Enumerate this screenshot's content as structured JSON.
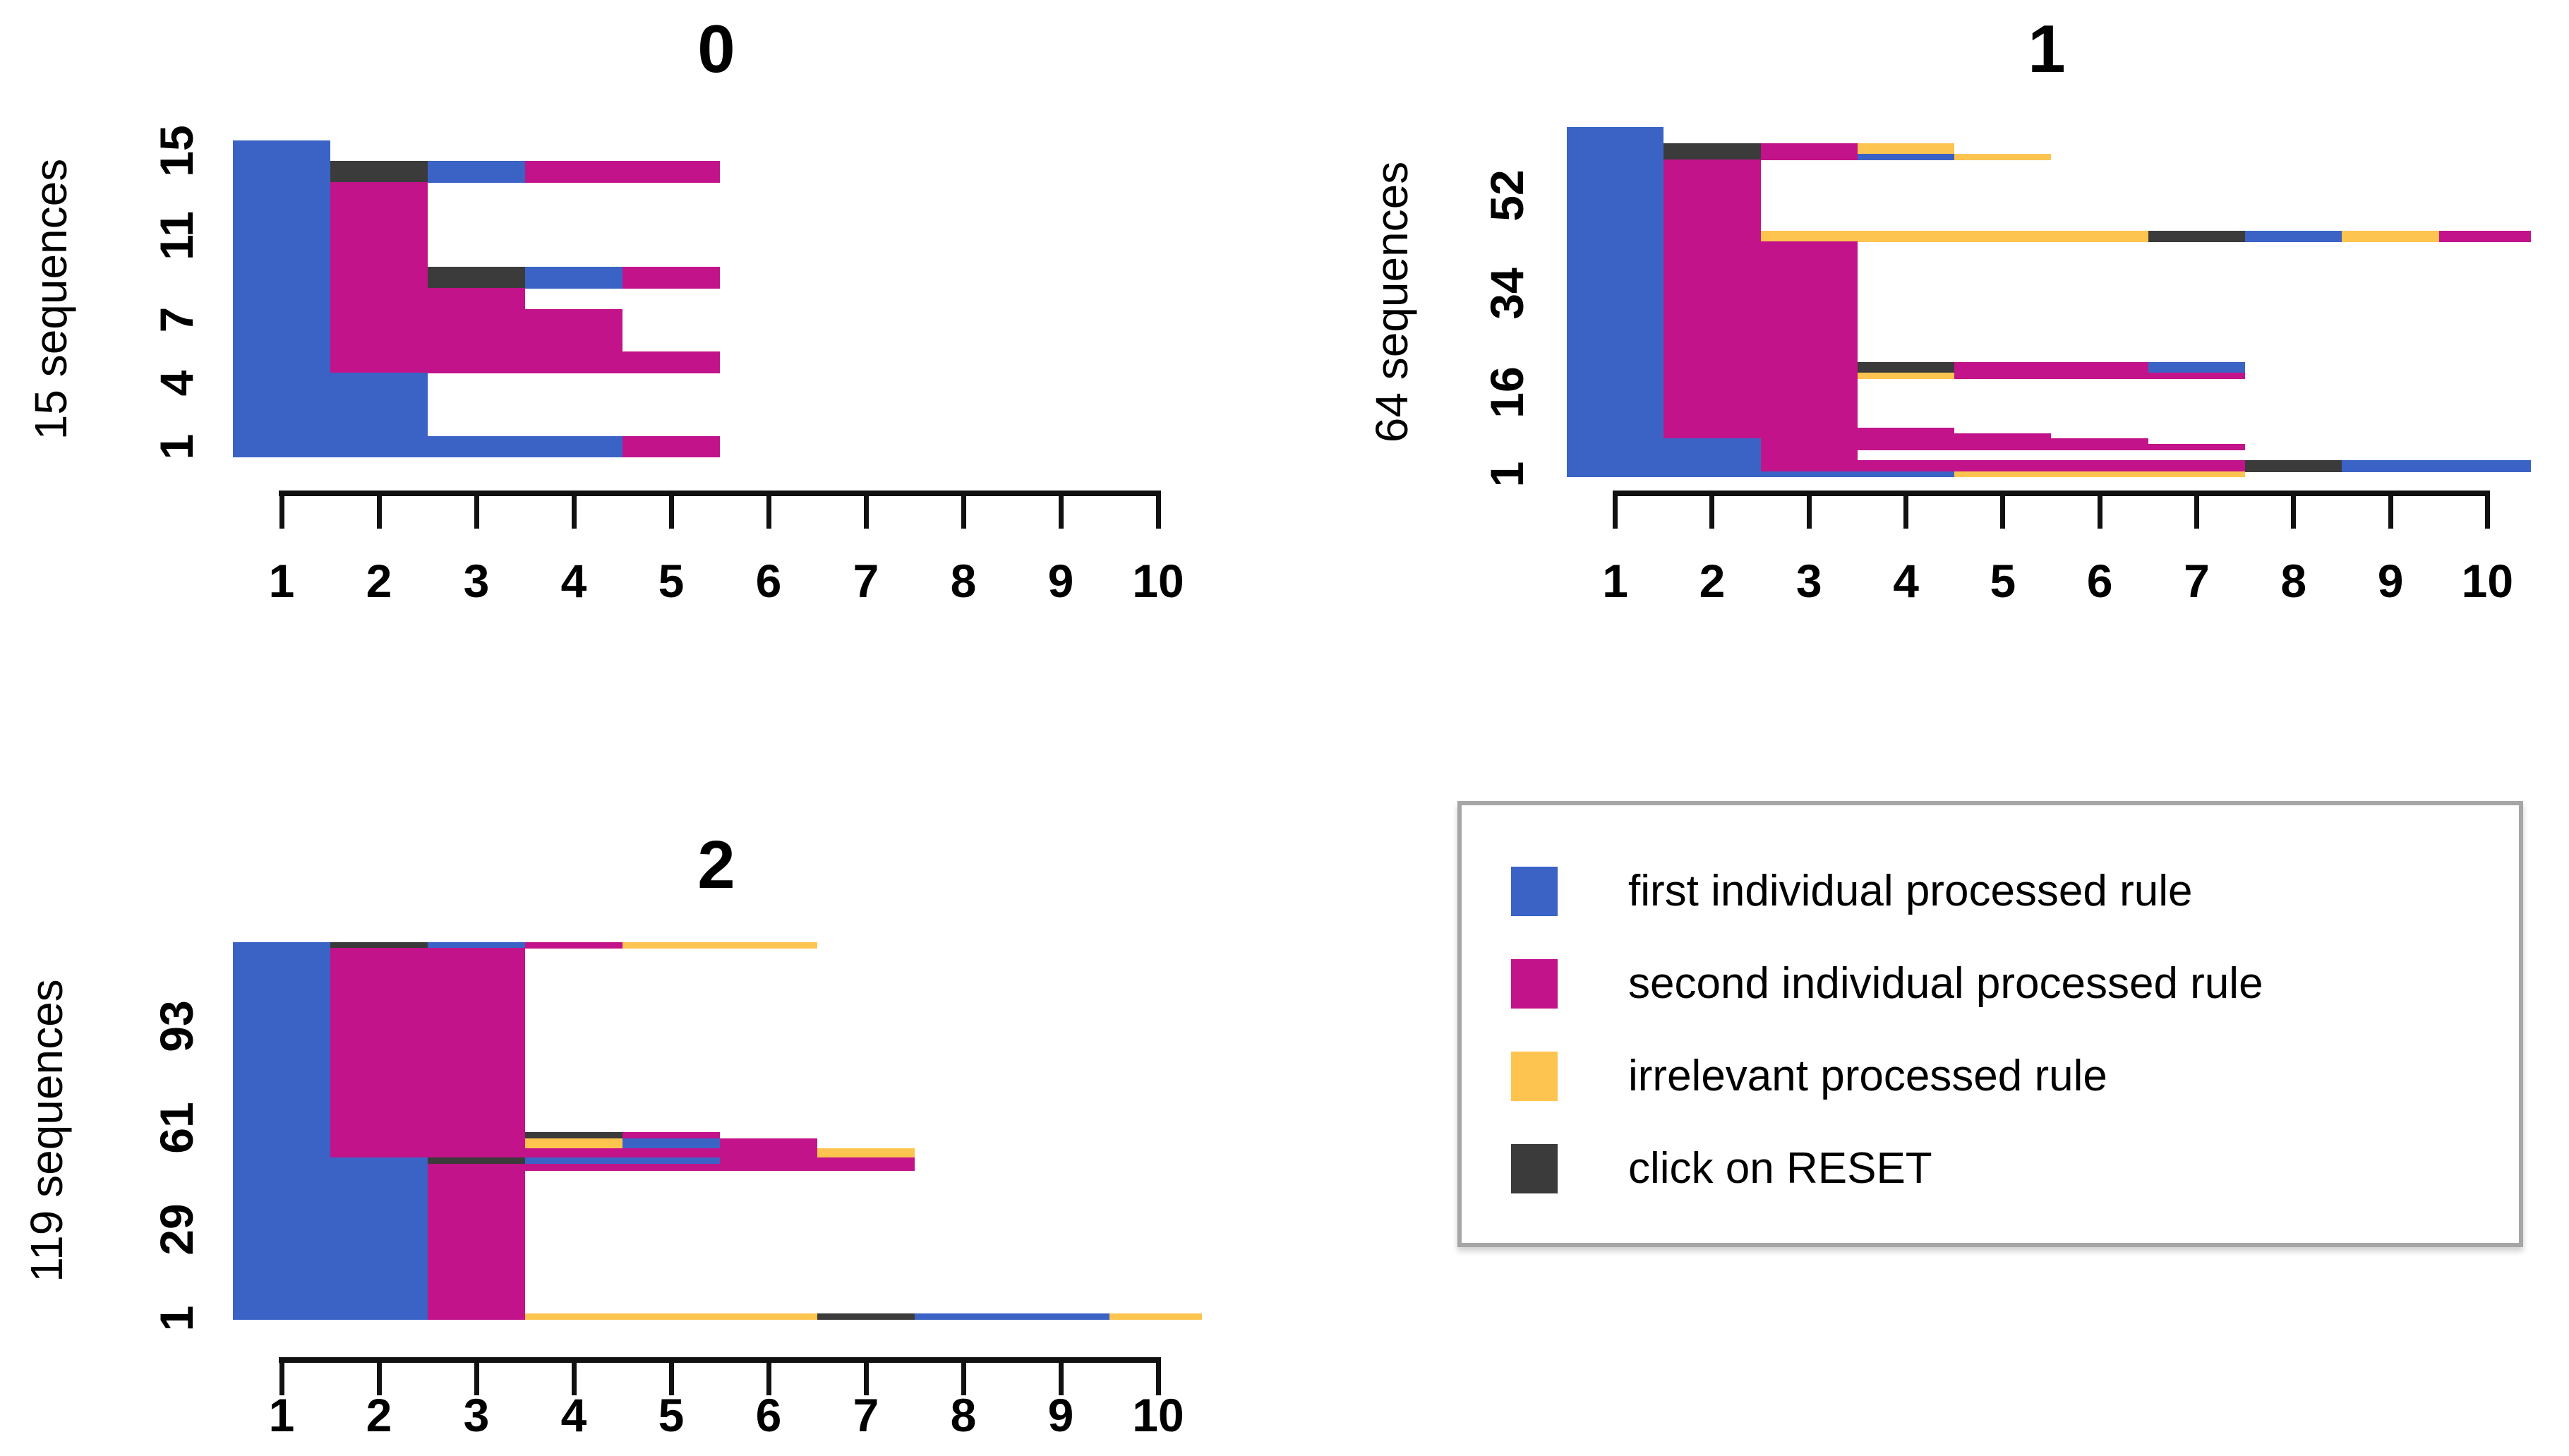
{
  "chart_data": {
    "type": "sequence-index-plot",
    "description": "Three horizontal state-sequence panels (groups 0, 1, 2) of processed rules over positions 1-10, with a shared color legend",
    "colors": {
      "blue": "#3b63c6",
      "magenta": "#c2138a",
      "orange": "#fdc44f",
      "dark": "#3b3b3b",
      "axis": "#111111"
    },
    "panels": [
      {
        "title": "0",
        "ylabel": "15 sequences",
        "n_sequences": 15,
        "yticks": [
          1,
          4,
          7,
          11,
          15
        ],
        "xticks": [
          1,
          2,
          3,
          4,
          5,
          6,
          7,
          8,
          9,
          10
        ],
        "xlim": [
          0.5,
          10.5
        ],
        "bands": [
          {
            "h": 1,
            "segs": [
              [
                "blue",
                0.5,
                1.5
              ]
            ]
          },
          {
            "h": 1,
            "segs": [
              [
                "blue",
                0.5,
                1.5
              ],
              [
                "dark",
                1.5,
                2.5
              ],
              [
                "blue",
                2.5,
                3.5
              ],
              [
                "magenta",
                3.5,
                5.5
              ]
            ]
          },
          {
            "h": 4,
            "segs": [
              [
                "blue",
                0.5,
                1.5
              ],
              [
                "magenta",
                1.5,
                2.5
              ]
            ]
          },
          {
            "h": 1,
            "segs": [
              [
                "blue",
                0.5,
                1.5
              ],
              [
                "magenta",
                1.5,
                2.5
              ],
              [
                "dark",
                2.5,
                3.5
              ],
              [
                "blue",
                3.5,
                4.5
              ],
              [
                "magenta",
                4.5,
                5.5
              ]
            ]
          },
          {
            "h": 1,
            "segs": [
              [
                "blue",
                0.5,
                1.5
              ],
              [
                "magenta",
                1.5,
                3.5
              ]
            ]
          },
          {
            "h": 2,
            "segs": [
              [
                "blue",
                0.5,
                1.5
              ],
              [
                "magenta",
                1.5,
                4.5
              ]
            ]
          },
          {
            "h": 1,
            "segs": [
              [
                "blue",
                0.5,
                1.5
              ],
              [
                "magenta",
                1.5,
                5.5
              ]
            ]
          },
          {
            "h": 3,
            "segs": [
              [
                "blue",
                0.5,
                2.5
              ]
            ]
          },
          {
            "h": 1,
            "segs": [
              [
                "blue",
                0.5,
                4.5
              ],
              [
                "magenta",
                4.5,
                5.5
              ]
            ]
          }
        ]
      },
      {
        "title": "1",
        "ylabel": "64 sequences",
        "n_sequences": 64,
        "yticks": [
          1,
          16,
          34,
          52
        ],
        "xticks": [
          1,
          2,
          3,
          4,
          5,
          6,
          7,
          8,
          9,
          10
        ],
        "xlim": [
          0.5,
          10.5
        ],
        "bands": [
          {
            "h": 3,
            "segs": [
              [
                "blue",
                0.5,
                1.5
              ]
            ]
          },
          {
            "h": 2,
            "segs": [
              [
                "blue",
                0.5,
                1.5
              ],
              [
                "dark",
                1.5,
                2.5
              ],
              [
                "magenta",
                2.5,
                3.5
              ],
              [
                "orange",
                3.5,
                4.5
              ]
            ]
          },
          {
            "h": 1,
            "segs": [
              [
                "blue",
                0.5,
                1.5
              ],
              [
                "dark",
                1.5,
                2.5
              ],
              [
                "magenta",
                2.5,
                3.5
              ],
              [
                "blue",
                3.5,
                4.5
              ],
              [
                "orange",
                4.5,
                5.5
              ]
            ]
          },
          {
            "h": 13,
            "segs": [
              [
                "blue",
                0.5,
                1.5
              ],
              [
                "magenta",
                1.5,
                2.5
              ]
            ]
          },
          {
            "h": 2,
            "segs": [
              [
                "blue",
                0.5,
                1.5
              ],
              [
                "magenta",
                1.5,
                2.5
              ],
              [
                "orange",
                2.5,
                6.5
              ],
              [
                "dark",
                6.5,
                7.5
              ],
              [
                "blue",
                7.5,
                8.5
              ],
              [
                "orange",
                8.5,
                9.5
              ],
              [
                "magenta",
                9.5,
                10.45
              ]
            ]
          },
          {
            "h": 22,
            "segs": [
              [
                "blue",
                0.5,
                1.5
              ],
              [
                "magenta",
                1.5,
                3.5
              ]
            ]
          },
          {
            "h": 2,
            "segs": [
              [
                "blue",
                0.5,
                1.5
              ],
              [
                "magenta",
                1.5,
                3.5
              ],
              [
                "dark",
                3.5,
                4.5
              ],
              [
                "magenta",
                4.5,
                6.5
              ],
              [
                "blue",
                6.5,
                7.5
              ]
            ]
          },
          {
            "h": 1,
            "segs": [
              [
                "blue",
                0.5,
                1.5
              ],
              [
                "magenta",
                1.5,
                3.5
              ],
              [
                "orange",
                3.5,
                4.5
              ],
              [
                "magenta",
                4.5,
                7.5
              ]
            ]
          },
          {
            "h": 9,
            "segs": [
              [
                "blue",
                0.5,
                1.5
              ],
              [
                "magenta",
                1.5,
                3.5
              ]
            ]
          },
          {
            "h": 1,
            "segs": [
              [
                "blue",
                0.5,
                1.5
              ],
              [
                "magenta",
                1.5,
                4.5
              ]
            ]
          },
          {
            "h": 1,
            "segs": [
              [
                "blue",
                0.5,
                1.5
              ],
              [
                "magenta",
                1.5,
                5.5
              ]
            ]
          },
          {
            "h": 1,
            "segs": [
              [
                "blue",
                0.5,
                2.5
              ],
              [
                "magenta",
                2.5,
                6.5
              ]
            ]
          },
          {
            "h": 1,
            "segs": [
              [
                "blue",
                0.5,
                2.5
              ],
              [
                "magenta",
                2.5,
                7.5
              ]
            ]
          },
          {
            "h": 2,
            "segs": [
              [
                "blue",
                0.5,
                2.5
              ],
              [
                "magenta",
                2.5,
                3.5
              ]
            ]
          },
          {
            "h": 2,
            "segs": [
              [
                "blue",
                0.5,
                2.5
              ],
              [
                "magenta",
                2.5,
                7.5
              ],
              [
                "dark",
                7.5,
                8.5
              ],
              [
                "blue",
                8.5,
                10.45
              ]
            ]
          },
          {
            "h": 1,
            "segs": [
              [
                "blue",
                0.5,
                4.5
              ],
              [
                "orange",
                4.5,
                7.5
              ]
            ]
          }
        ]
      },
      {
        "title": "2",
        "ylabel": "119 sequences",
        "n_sequences": 119,
        "yticks": [
          1,
          29,
          61,
          93
        ],
        "xticks": [
          1,
          2,
          3,
          4,
          5,
          6,
          7,
          8,
          9,
          10
        ],
        "xlim": [
          0.5,
          10.5
        ],
        "bands": [
          {
            "h": 2,
            "segs": [
              [
                "blue",
                0.5,
                1.5
              ],
              [
                "dark",
                1.5,
                2.5
              ],
              [
                "blue",
                2.5,
                3.5
              ],
              [
                "magenta",
                3.5,
                4.5
              ],
              [
                "orange",
                4.5,
                6.5
              ]
            ]
          },
          {
            "h": 58,
            "segs": [
              [
                "blue",
                0.5,
                1.5
              ],
              [
                "magenta",
                1.5,
                3.5
              ]
            ]
          },
          {
            "h": 2,
            "segs": [
              [
                "blue",
                0.5,
                1.5
              ],
              [
                "magenta",
                1.5,
                3.5
              ],
              [
                "dark",
                3.5,
                4.5
              ],
              [
                "magenta",
                4.5,
                5.5
              ]
            ]
          },
          {
            "h": 3,
            "segs": [
              [
                "blue",
                0.5,
                1.5
              ],
              [
                "magenta",
                1.5,
                3.5
              ],
              [
                "orange",
                3.5,
                4.5
              ],
              [
                "blue",
                4.5,
                5.5
              ],
              [
                "magenta",
                5.5,
                6.5
              ]
            ]
          },
          {
            "h": 3,
            "segs": [
              [
                "blue",
                0.5,
                1.5
              ],
              [
                "magenta",
                1.5,
                6.5
              ],
              [
                "orange",
                6.5,
                7.5
              ]
            ]
          },
          {
            "h": 2,
            "segs": [
              [
                "blue",
                0.5,
                2.5
              ],
              [
                "dark",
                2.5,
                3.5
              ],
              [
                "blue",
                3.5,
                5.5
              ],
              [
                "magenta",
                5.5,
                7.5
              ]
            ]
          },
          {
            "h": 2,
            "segs": [
              [
                "blue",
                0.5,
                2.5
              ],
              [
                "magenta",
                2.5,
                7.5
              ]
            ]
          },
          {
            "h": 45,
            "segs": [
              [
                "blue",
                0.5,
                2.5
              ],
              [
                "magenta",
                2.5,
                3.5
              ]
            ]
          },
          {
            "h": 2,
            "segs": [
              [
                "blue",
                0.5,
                2.5
              ],
              [
                "magenta",
                2.5,
                3.5
              ],
              [
                "orange",
                3.5,
                6.5
              ],
              [
                "dark",
                6.5,
                7.5
              ],
              [
                "blue",
                7.5,
                9.5
              ],
              [
                "orange",
                9.5,
                10.45
              ]
            ]
          }
        ]
      }
    ],
    "legend": {
      "items": [
        {
          "color": "blue",
          "label": "first individual processed rule"
        },
        {
          "color": "magenta",
          "label": "second individual processed rule"
        },
        {
          "color": "orange",
          "label": "irrelevant processed rule"
        },
        {
          "color": "dark",
          "label": "click on RESET"
        }
      ]
    }
  }
}
